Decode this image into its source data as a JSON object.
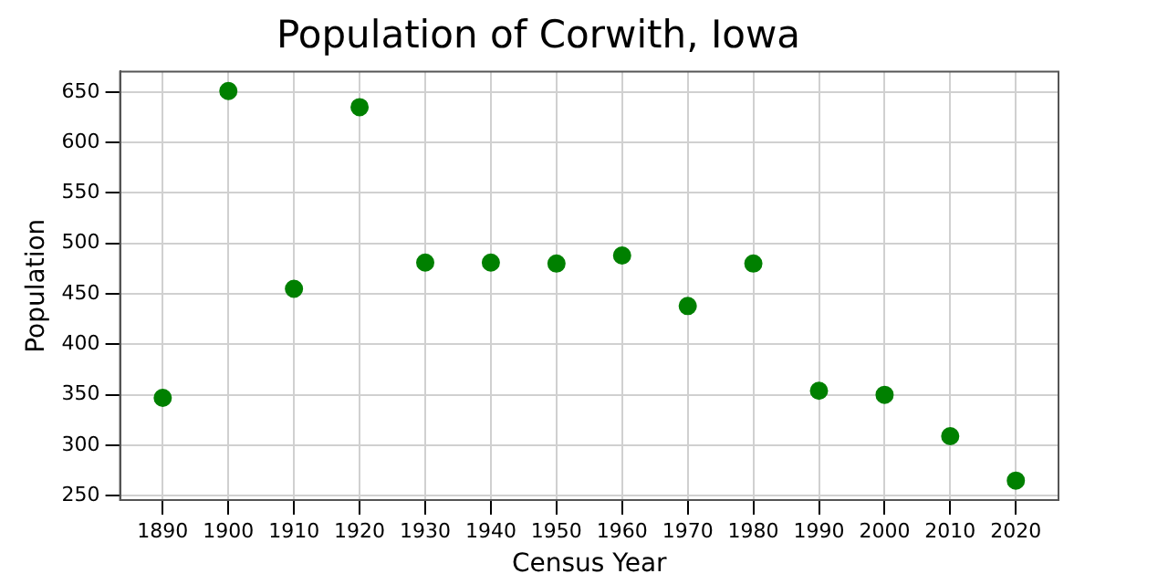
{
  "chart_data": {
    "type": "scatter",
    "title": "Population of Corwith, Iowa",
    "xlabel": "Census Year",
    "ylabel": "Population",
    "x": [
      1890,
      1900,
      1910,
      1920,
      1930,
      1940,
      1950,
      1960,
      1970,
      1980,
      1990,
      2000,
      2010,
      2020
    ],
    "series": [
      {
        "color": "#008000",
        "values": [
          347,
          651,
          455,
          635,
          481,
          481,
          480,
          488,
          438,
          480,
          354,
          350,
          309,
          265
        ]
      }
    ],
    "xlim": [
      1883.5,
      2026.5
    ],
    "xticks": [
      1890,
      1900,
      1910,
      1920,
      1930,
      1940,
      1950,
      1960,
      1970,
      1980,
      1990,
      2000,
      2010,
      2020
    ],
    "ylim": [
      245.7,
      670.3
    ],
    "yticks": [
      250,
      300,
      350,
      400,
      450,
      500,
      550,
      600,
      650
    ],
    "grid": true,
    "marker": "circle",
    "legend": false
  }
}
